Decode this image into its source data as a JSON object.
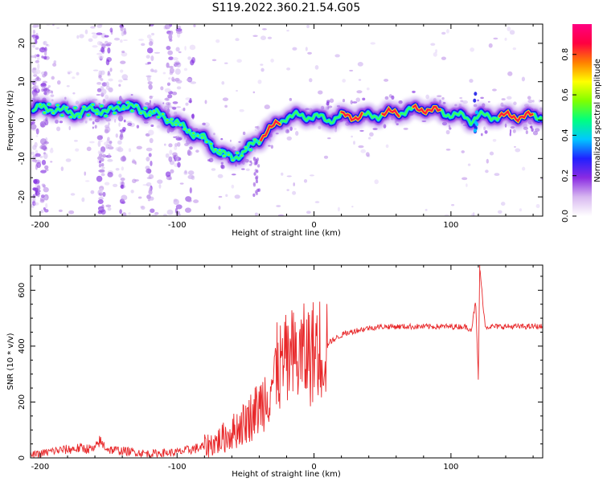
{
  "figure": {
    "title": "S119.2022.360.21.54.G05"
  },
  "chart_data": [
    {
      "type": "heatmap",
      "xlabel": "Height of straight line (km)",
      "ylabel": "Frequency (Hz)",
      "xlim": [
        -207,
        167
      ],
      "ylim": [
        -25,
        25
      ],
      "x_ticks": [
        -200,
        -100,
        0,
        100
      ],
      "y_ticks": [
        -20,
        -10,
        0,
        10,
        20
      ],
      "colorbar": {
        "label": "Normalized spectral amplitude",
        "range": [
          0,
          0.95
        ],
        "ticks": [
          0.0,
          0.2,
          0.4,
          0.6,
          0.8
        ],
        "colormap": [
          "#ffffff",
          "#d8b8f0",
          "#8a2be2",
          "#2020ff",
          "#00c8ff",
          "#00ff80",
          "#80ff00",
          "#ffff00",
          "#ff8000",
          "#ff0040",
          "#ff0080"
        ]
      },
      "ridge_frequency": {
        "x": [
          -200,
          -190,
          -180,
          -170,
          -160,
          -150,
          -140,
          -130,
          -120,
          -110,
          -100,
          -90,
          -80,
          -70,
          -60,
          -50,
          -40,
          -35,
          -30,
          -20,
          -10,
          0,
          10,
          20,
          40,
          60,
          80,
          95,
          105,
          110,
          115,
          120,
          140,
          160,
          167
        ],
        "y": [
          3,
          3,
          2,
          2,
          3,
          2,
          4,
          3,
          2,
          1,
          -1,
          -3,
          -5,
          -8,
          -10,
          -8,
          -5,
          -3,
          -2,
          1,
          1,
          1,
          0,
          1,
          1,
          2,
          3,
          2,
          1,
          1,
          0,
          1,
          1,
          1,
          1
        ]
      }
    },
    {
      "type": "line",
      "xlabel": "Height of straight line (km)",
      "ylabel": "SNR (10 * v/v)",
      "xlim": [
        -207,
        167
      ],
      "ylim": [
        0,
        690
      ],
      "x_ticks": [
        -200,
        -100,
        0,
        100
      ],
      "y_ticks": [
        0,
        200,
        400,
        600
      ],
      "series": [
        {
          "color": "#e8282a",
          "x": [
            -207,
            -200,
            -190,
            -180,
            -170,
            -160,
            -157,
            -150,
            -140,
            -130,
            -120,
            -110,
            -100,
            -90,
            -80,
            -75,
            -70,
            -60,
            -50,
            -40,
            -35,
            -30,
            -25,
            -20,
            -10,
            0,
            10,
            20,
            30,
            40,
            50,
            60,
            70,
            80,
            90,
            100,
            110,
            115,
            118,
            120,
            121,
            125,
            130,
            140,
            150,
            160,
            167
          ],
          "y": [
            10,
            15,
            25,
            30,
            35,
            30,
            60,
            30,
            25,
            20,
            15,
            18,
            20,
            30,
            40,
            50,
            60,
            90,
            130,
            180,
            230,
            280,
            320,
            340,
            360,
            380,
            410,
            440,
            455,
            465,
            470,
            470,
            470,
            470,
            470,
            470,
            470,
            460,
            560,
            290,
            680,
            470,
            470,
            470,
            470,
            470,
            470
          ],
          "spikes": [
            {
              "x": -27,
              "y": 485
            },
            {
              "x": 121,
              "y": 690
            },
            {
              "x": 120,
              "y": 280
            }
          ]
        }
      ]
    }
  ]
}
